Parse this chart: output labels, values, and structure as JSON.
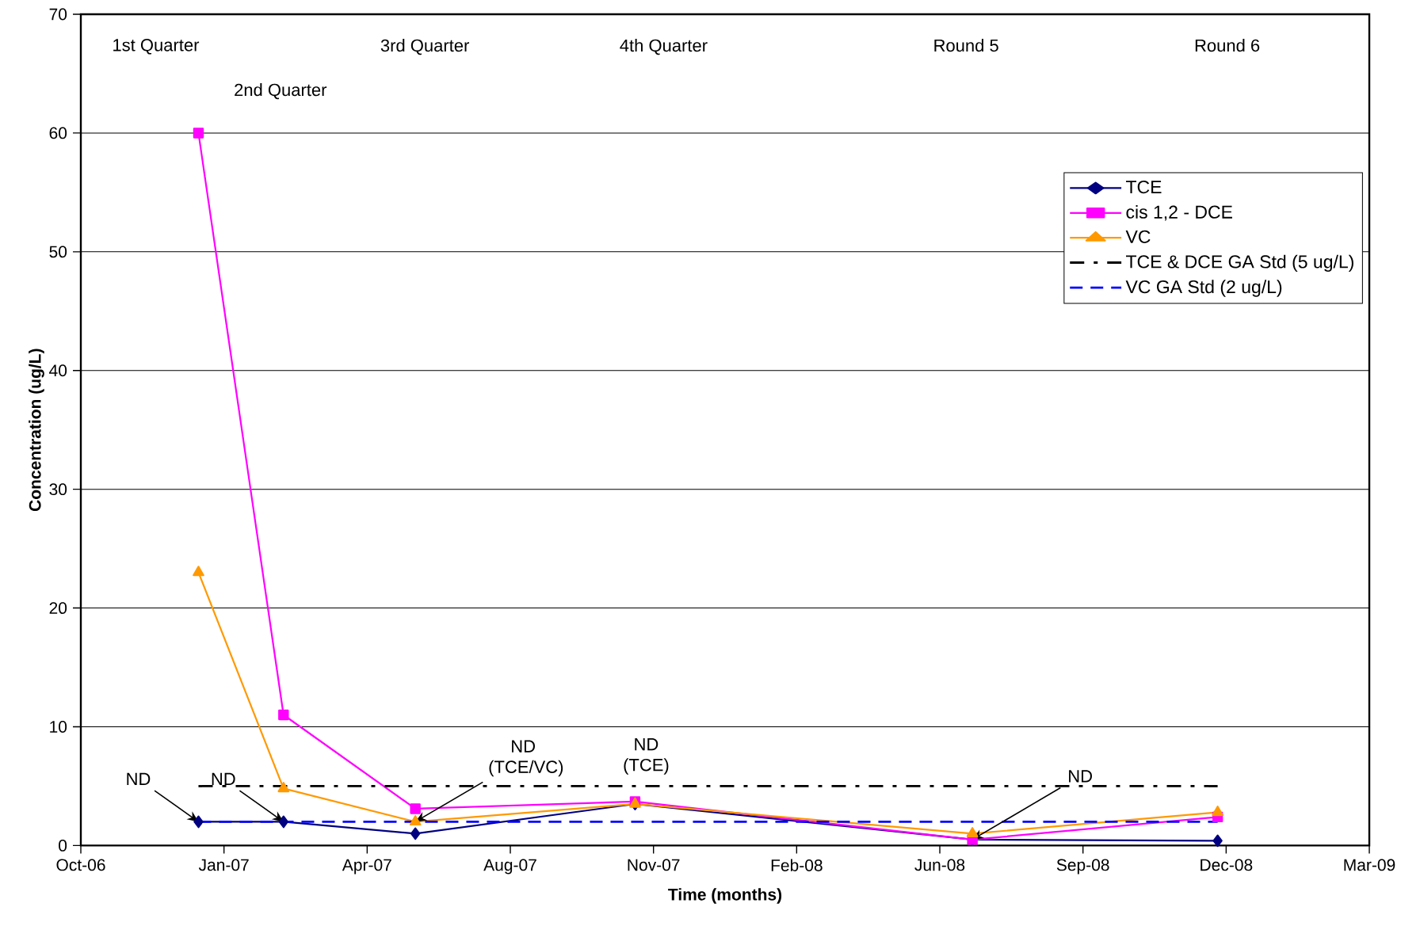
{
  "chart_data": {
    "type": "line",
    "xlabel": "Time (months)",
    "ylabel": "Concentration (ug/L)",
    "x": [
      "2006-12-26",
      "2007-02-24",
      "2007-05-28",
      "2007-10-30",
      "2008-06-24",
      "2008-12-14"
    ],
    "series": [
      {
        "name": "TCE",
        "color": "#000080",
        "marker": "diamond",
        "line_style": "solid",
        "values": [
          2,
          2,
          1,
          3.5,
          0.5,
          0.4
        ]
      },
      {
        "name": "cis 1,2 - DCE",
        "color": "#ff00ff",
        "marker": "square",
        "line_style": "solid",
        "values": [
          60,
          11,
          3.1,
          3.7,
          0.5,
          2.4
        ]
      },
      {
        "name": "VC",
        "color": "#ff9900",
        "marker": "triangle",
        "line_style": "solid",
        "values": [
          23,
          4.8,
          2,
          3.5,
          1,
          2.8
        ]
      },
      {
        "name": "TCE & DCE GA Std (5 ug/L)",
        "color": "#000000",
        "marker": "none",
        "line_style": "dashdot",
        "x": [
          "2006-12-26",
          "2008-12-14"
        ],
        "values": [
          5,
          5
        ]
      },
      {
        "name": "VC GA Std (2 ug/L)",
        "color": "#0000ff",
        "marker": "none",
        "line_style": "dashed",
        "x": [
          "2006-12-26",
          "2008-12-14"
        ],
        "values": [
          2,
          2
        ]
      }
    ],
    "xlim": [
      "2006-10-04",
      "2009-03-31"
    ],
    "xticks": [
      {
        "value": "2006-10-04",
        "label": "Oct-06"
      },
      {
        "value": "2007-01-13",
        "label": "Jan-07"
      },
      {
        "value": "2007-04-24",
        "label": "Apr-07"
      },
      {
        "value": "2007-08-03",
        "label": "Aug-07"
      },
      {
        "value": "2007-11-12",
        "label": "Nov-07"
      },
      {
        "value": "2008-02-21",
        "label": "Feb-08"
      },
      {
        "value": "2008-06-01",
        "label": "Jun-08"
      },
      {
        "value": "2008-09-10",
        "label": "Sep-08"
      },
      {
        "value": "2008-12-20",
        "label": "Dec-08"
      },
      {
        "value": "2009-03-31",
        "label": "Mar-09"
      }
    ],
    "ylim": [
      0,
      70
    ],
    "yticks": [
      0,
      10,
      20,
      30,
      40,
      50,
      60,
      70
    ],
    "grid": "y",
    "legend": "top right",
    "annotations": [
      "1st Quarter",
      "2nd Quarter",
      "3rd Quarter",
      "4th Quarter",
      "Round 5",
      "Round 6",
      {
        "text": "ND",
        "x": "2006-12-26",
        "y": 2
      },
      {
        "text": "ND",
        "x": "2007-02-24",
        "y": 2
      },
      {
        "text": "ND (TCE/VC)",
        "x": "2007-05-28",
        "y": 2
      },
      "ND (TCE)",
      {
        "text": "ND",
        "x": "2008-06-24",
        "y": 0.5
      }
    ]
  }
}
